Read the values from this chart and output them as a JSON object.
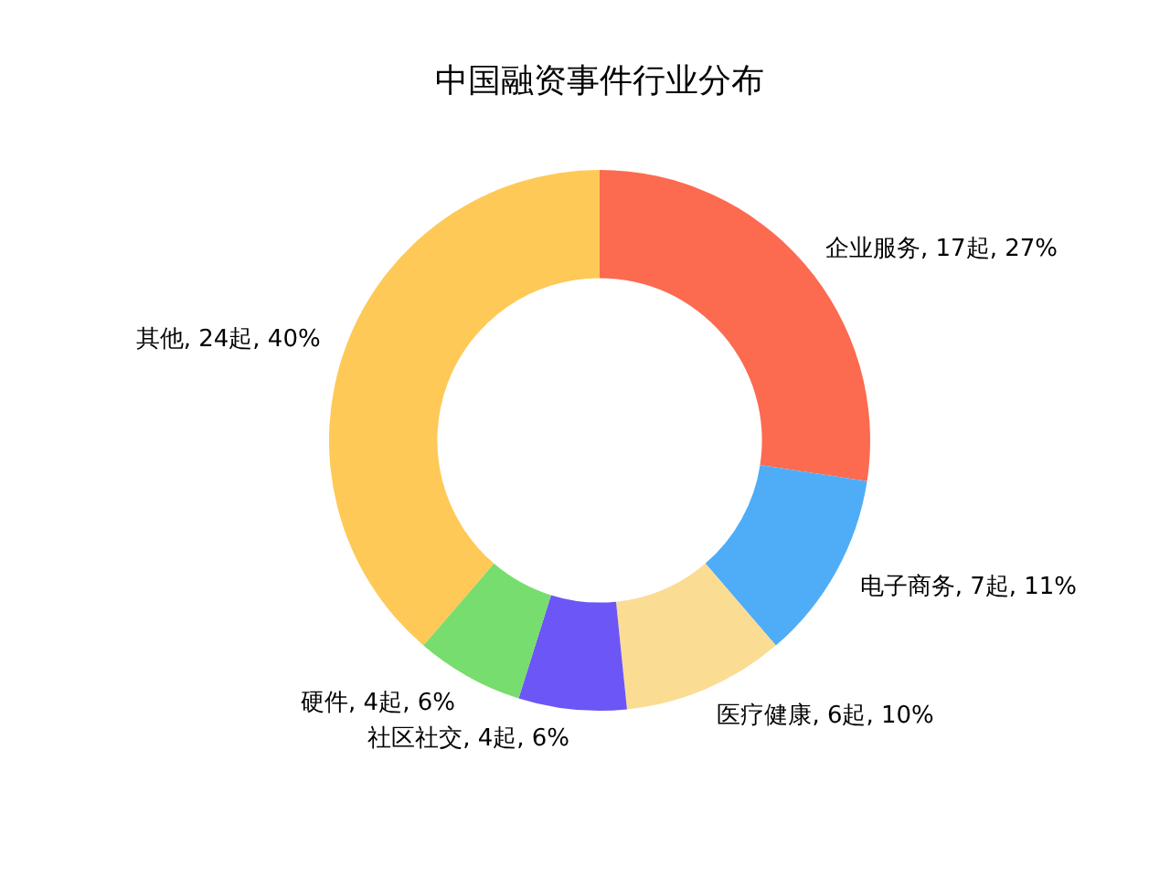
{
  "chart_data": {
    "type": "donut",
    "title": "中国融资事件行业分布",
    "categories": [
      "企业服务",
      "电子商务",
      "医疗健康",
      "社区社交",
      "硬件",
      "其他"
    ],
    "values": [
      17,
      7,
      6,
      4,
      4,
      24
    ],
    "value_labels": [
      "17起, 27%",
      "7起, 11%",
      "6起, 10%",
      "4起, 6%",
      "4起, 6%",
      "24起, 40%"
    ],
    "colors": [
      "#fc6a50",
      "#4fadf7",
      "#fbdc93",
      "#6c56f5",
      "#77dd6e",
      "#fec957"
    ]
  }
}
